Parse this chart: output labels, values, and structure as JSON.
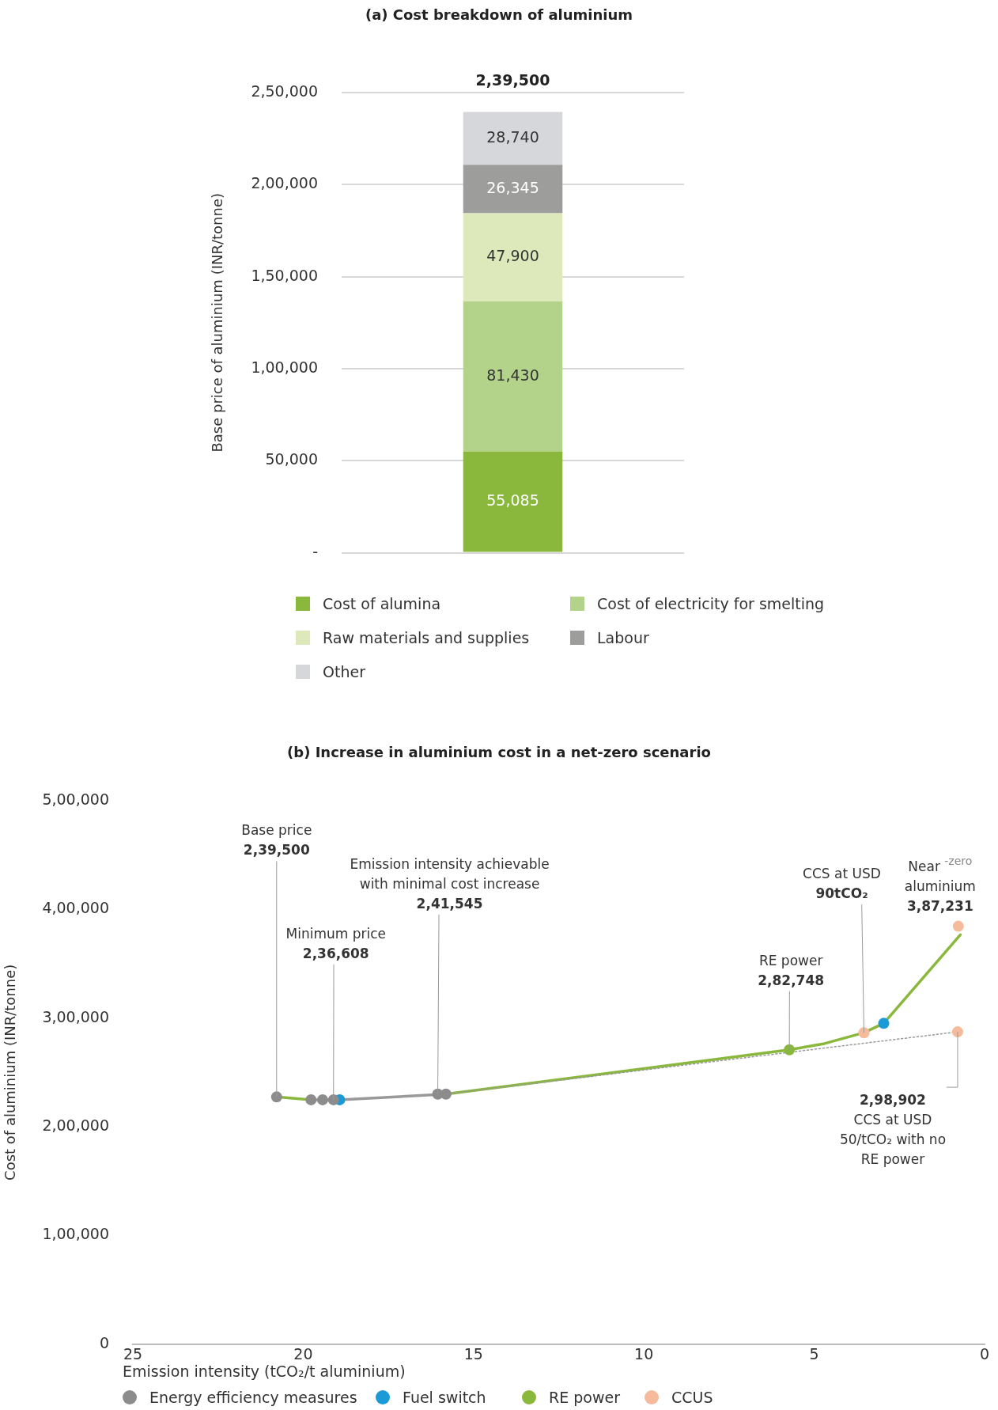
{
  "chart_data": [
    {
      "type": "bar",
      "title": "(a) Cost breakdown of aluminium",
      "ylabel": "Base price of aluminium (INR/tonne)",
      "categories": [
        null
      ],
      "stacked": true,
      "series": [
        {
          "name": "Cost of alumina",
          "color": "#8ab83c",
          "values": [
            55085
          ],
          "value_labels": [
            "55,085"
          ]
        },
        {
          "name": "Cost of electricity for smelting",
          "color": "#b3d38a",
          "values": [
            81430
          ],
          "value_labels": [
            "81,430"
          ]
        },
        {
          "name": "Raw materials and supplies",
          "color": "#dde9bb",
          "values": [
            47900
          ],
          "value_labels": [
            "47,900"
          ]
        },
        {
          "name": "Labour",
          "color": "#9d9d9c",
          "values": [
            26345
          ],
          "value_labels": [
            "26,345"
          ]
        },
        {
          "name": "Other",
          "color": "#d6d7da",
          "values": [
            28740
          ],
          "value_labels": [
            "28,740"
          ]
        }
      ],
      "totals": [
        "2,39,500"
      ],
      "ylim": [
        0,
        250000
      ],
      "yticks": [
        {
          "value": 0,
          "label": "-"
        },
        {
          "value": 50000,
          "label": "50,000"
        },
        {
          "value": 100000,
          "label": "1,00,000"
        },
        {
          "value": 150000,
          "label": "1,50,000"
        },
        {
          "value": 200000,
          "label": "2,00,000"
        },
        {
          "value": 250000,
          "label": "2,50,000"
        }
      ],
      "grid": "y",
      "legend": "bottom"
    },
    {
      "type": "scatter",
      "title": "(b) Increase in aluminium cost in a net-zero scenario",
      "xlabel": "Emission intensity (tCO₂/t aluminium)",
      "ylabel": "Cost of aluminium (INR/tonne)",
      "series": [
        {
          "type": "line",
          "marker": "none",
          "color": "#8ab83c",
          "x": [
            20.78,
            19.77
          ],
          "values": [
            227400,
            224800
          ]
        },
        {
          "type": "line",
          "marker": "none",
          "color": "#999999",
          "x": [
            19.77,
            18.93,
            15.81
          ],
          "values": [
            224800,
            224800,
            230000
          ]
        },
        {
          "type": "line",
          "marker": "none",
          "color": "#999999",
          "line_style": "dotted",
          "x": [
            15.81,
            0.79
          ],
          "values": [
            230000,
            287300
          ]
        },
        {
          "type": "line",
          "marker": "none",
          "color": "#8ab83c",
          "x": [
            15.81,
            5.73,
            4.7,
            3.54,
            2.96,
            0.71
          ],
          "values": [
            230000,
            270800,
            276500,
            286500,
            295100,
            376700
          ]
        },
        {
          "name": "Energy efficiency measures",
          "color": "#8c8c8c",
          "x": [
            20.78,
            19.77,
            19.43,
            19.11,
            16.05,
            15.81
          ],
          "values": [
            227400,
            224800,
            224800,
            224800,
            230000,
            230000
          ]
        },
        {
          "name": "Fuel switch",
          "color": "#1a9bd7",
          "x": [
            18.93,
            2.96
          ],
          "values": [
            224800,
            295100
          ]
        },
        {
          "name": "RE power",
          "color": "#8ab83c",
          "x": [
            5.73
          ],
          "values": [
            270800
          ]
        },
        {
          "name": "CCUS",
          "color": "#f6ba9c",
          "x": [
            3.54,
            0.77,
            0.79
          ],
          "values": [
            286500,
            384500,
            287300
          ]
        }
      ],
      "xlim": [
        25,
        0
      ],
      "xticks": [
        25,
        20,
        15,
        10,
        5,
        0
      ],
      "ylim": [
        0,
        500000
      ],
      "yticks": [
        0,
        {
          "value": 100000,
          "label": "1,00,000"
        },
        {
          "value": 200000,
          "label": "2,00,000"
        },
        {
          "value": 300000,
          "label": "3,00,000"
        },
        {
          "value": 400000,
          "label": "4,00,000"
        },
        {
          "value": 500000,
          "label": "5,00,000"
        }
      ],
      "marker": "circle",
      "grid": false,
      "legend": "bottom",
      "annotations": [
        {
          "text": "Base price\n2,39,500",
          "x": 20.78,
          "y": 227400
        },
        {
          "text": "Minimum price\n2,36,608",
          "x": 19.11,
          "y": 224800
        },
        {
          "text": "Emission intensity achievable\nwith minimal cost increase\n2,41,545",
          "x": 16.05,
          "y": 230000
        },
        {
          "text": "RE power\n2,82,748",
          "x": 5.73,
          "y": 270800
        },
        {
          "text": "CCS at USD\n90tCO₂",
          "x": 3.54,
          "y": 286500
        },
        {
          "text": "Near $^{-zero}$\naluminium\n3,87,231",
          "x": 0.77,
          "y": 384500
        },
        {
          "text": "2,98,902\nCCS at USD\n50/tCO₂ with no\nRE power",
          "x": 0.79,
          "y": 287300
        }
      ]
    }
  ]
}
